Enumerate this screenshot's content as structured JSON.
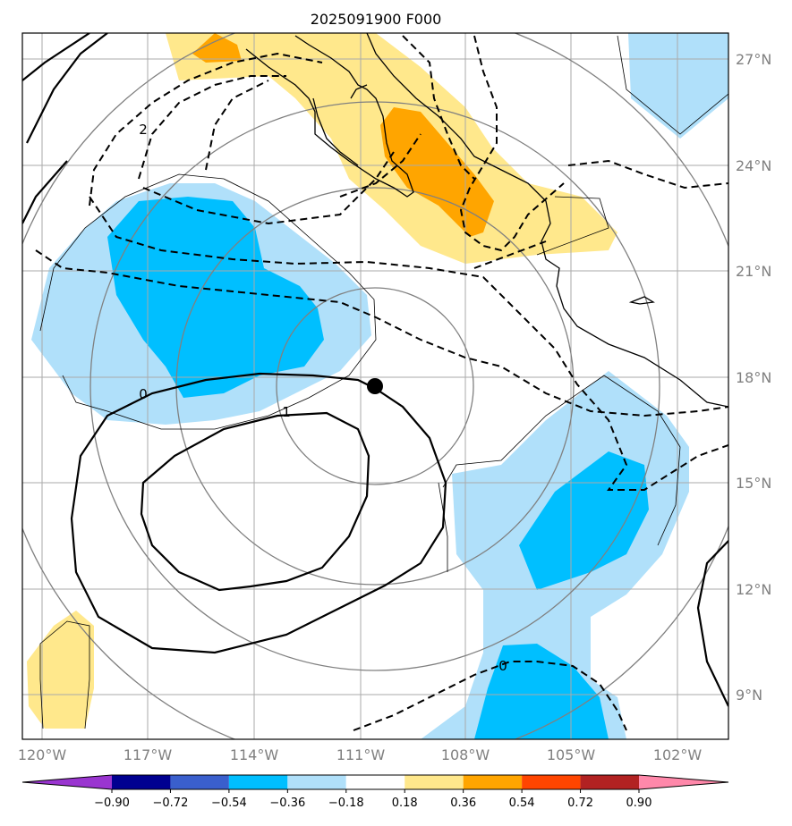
{
  "title": "2025091900 F000",
  "lat_labels": [
    "27°N",
    "24°N",
    "21°N",
    "18°N",
    "15°N",
    "12°N",
    "9°N"
  ],
  "lon_labels": [
    "120°W",
    "117°W",
    "114°W",
    "111°W",
    "108°W",
    "105°W",
    "102°W"
  ],
  "colorbar": {
    "ticks": [
      "−0.90",
      "−0.72",
      "−0.54",
      "−0.36",
      "−0.18",
      "0.18",
      "0.36",
      "0.54",
      "0.72",
      "0.90"
    ],
    "colors": [
      "#9a35d0",
      "#000090",
      "#3a5fcd",
      "#00bfff",
      "#b0e0fa",
      "#ffffff",
      "#ffe88c",
      "#ffa500",
      "#ff4500",
      "#b22222",
      "#ff88aa"
    ]
  },
  "contour_labels": [
    "2",
    "0",
    "1",
    "0"
  ],
  "fill_colors": {
    "light_blue": "#b0e0fa",
    "blue": "#00bfff",
    "light_yellow": "#ffe88c",
    "orange": "#ffa500"
  },
  "storm_marker": {
    "lat": 17.8,
    "lon": -110.4
  }
}
